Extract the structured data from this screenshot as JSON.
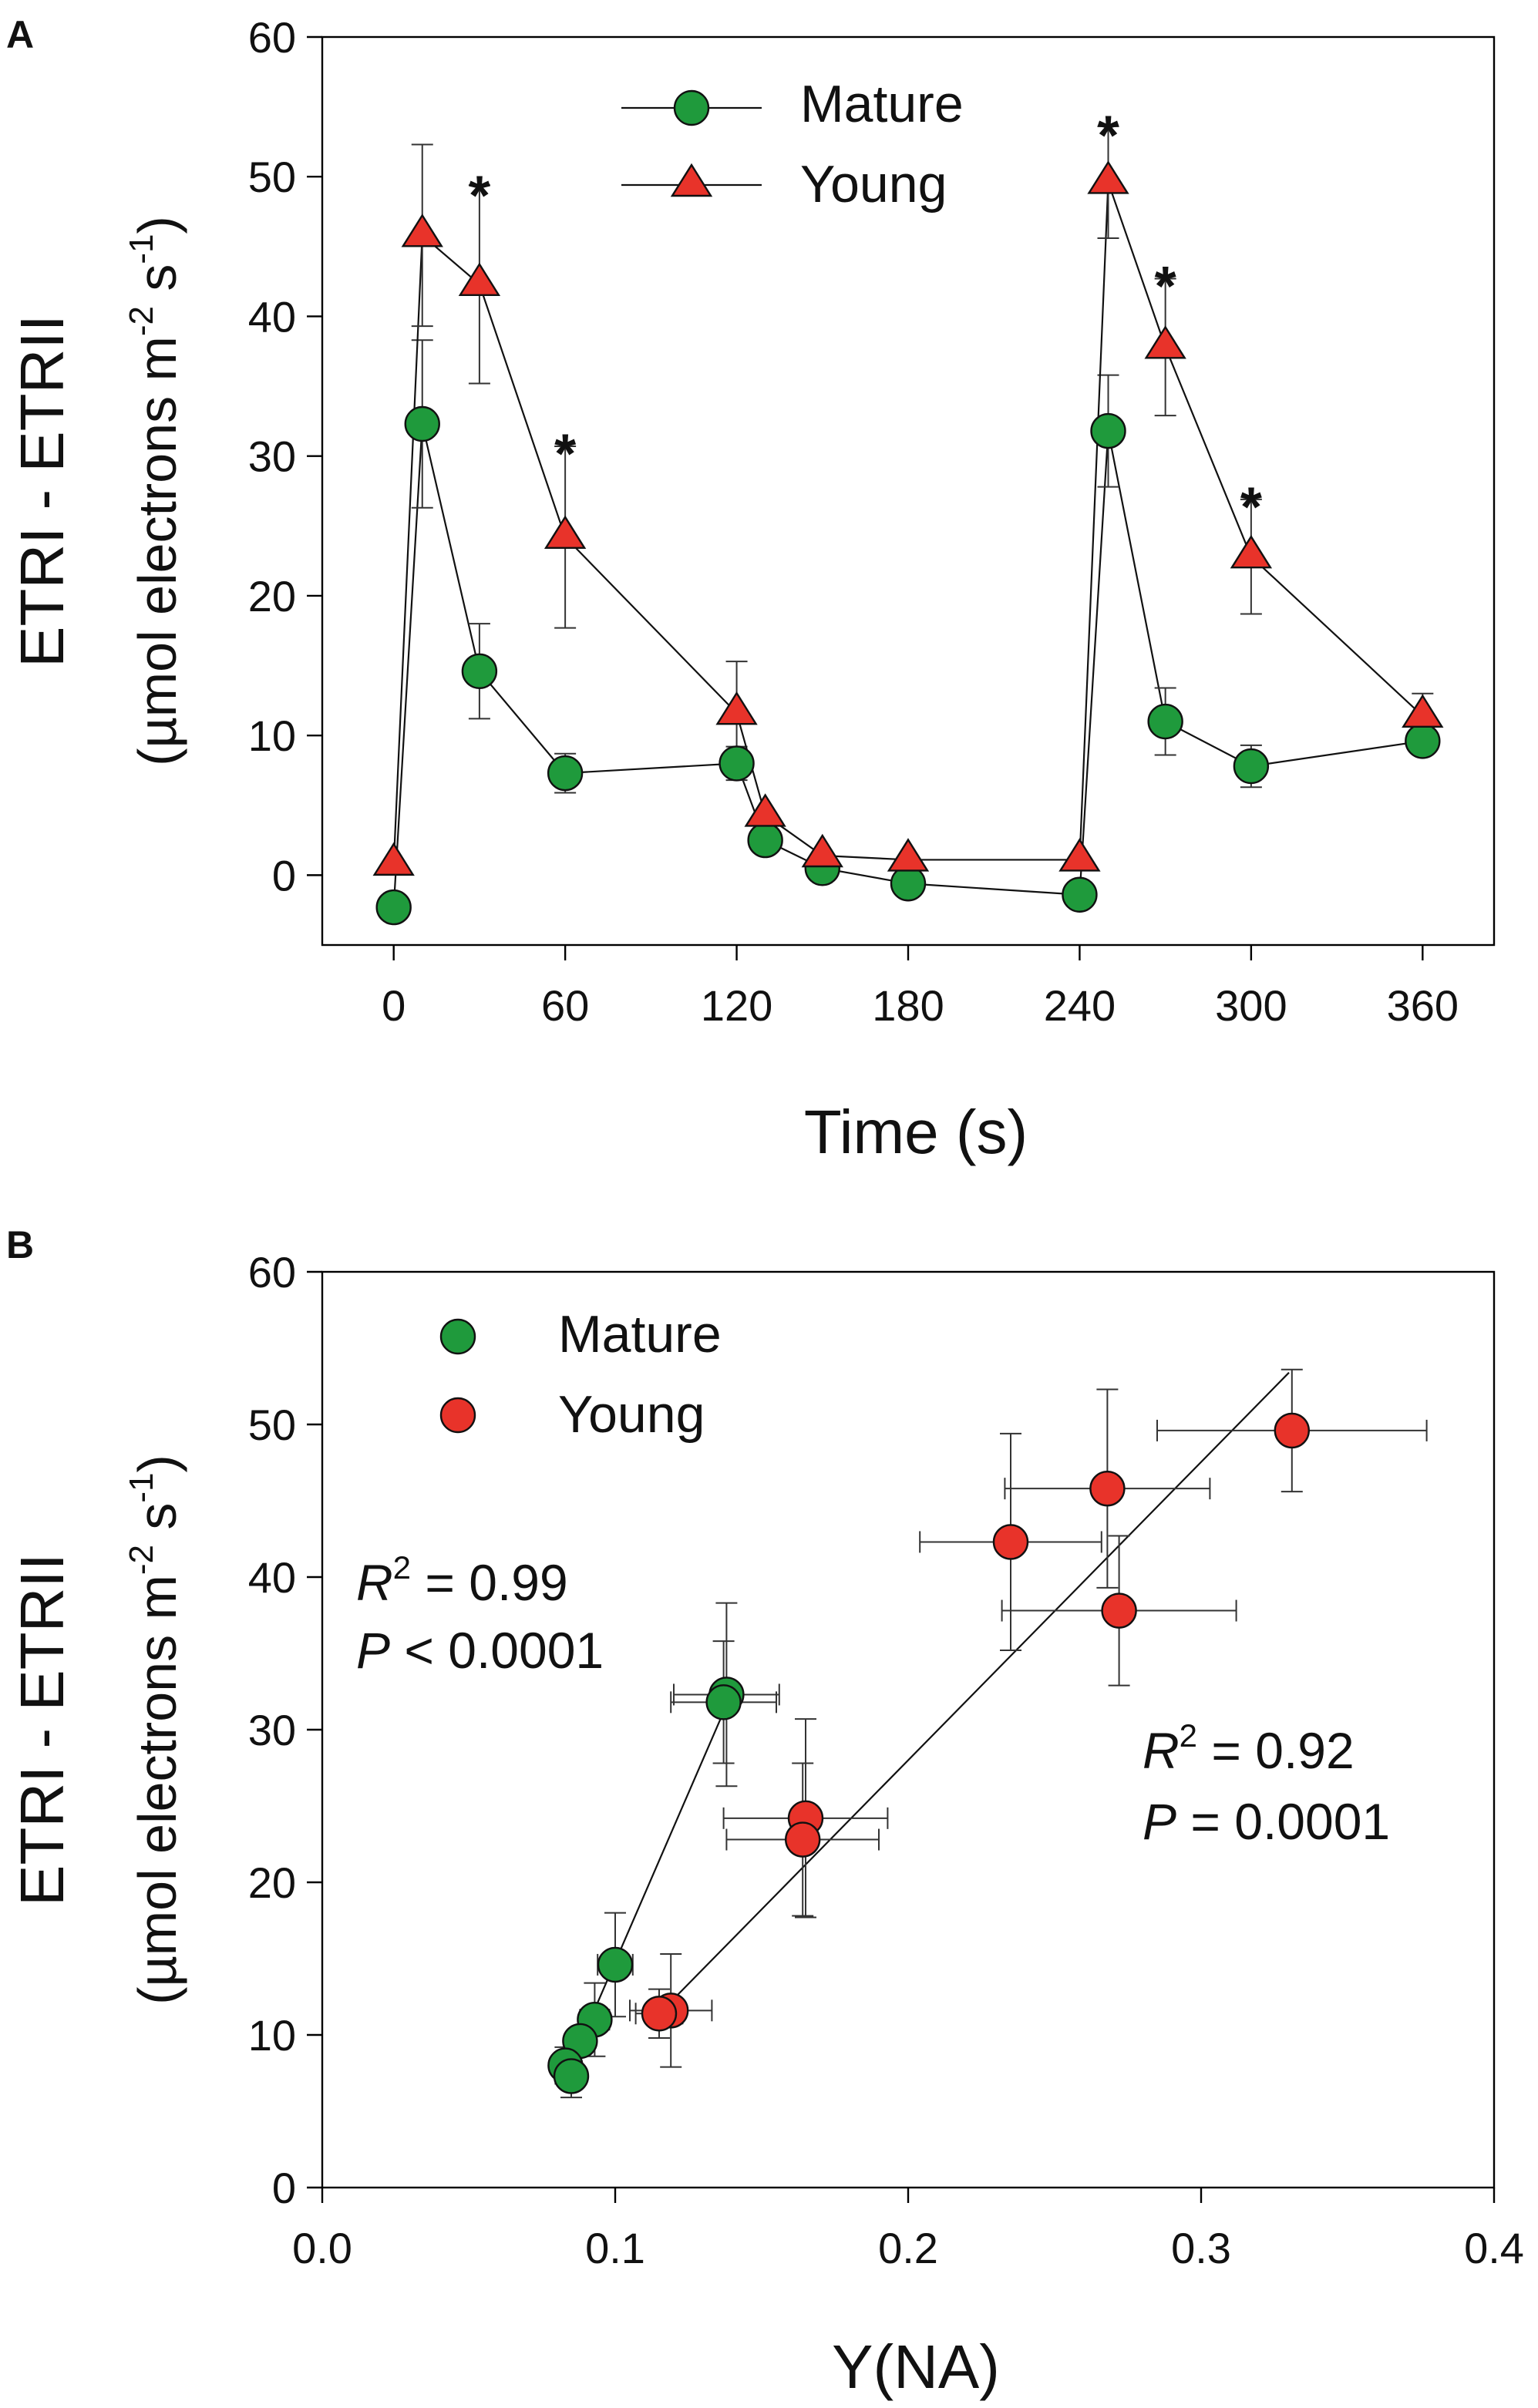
{
  "colors": {
    "mature": "#1f9a3c",
    "young_triangle": "#e8332a",
    "young_circle": "#e8332a",
    "axis": "#000000"
  },
  "chart_data": [
    {
      "panel_label": "A",
      "type": "line",
      "xlabel": "Time (s)",
      "ylabel": "ETRI - ETRII",
      "ylabel_units": "(µmol electrons m",
      "ylabel_exp1": "-2",
      "ylabel_units_mid": " s",
      "ylabel_exp2": "-1",
      "ylabel_close": ")",
      "xlim": [
        -25,
        385
      ],
      "ylim": [
        -5,
        60
      ],
      "xticks": [
        0,
        60,
        120,
        180,
        240,
        300,
        360
      ],
      "yticks": [
        0,
        10,
        20,
        30,
        40,
        50,
        60
      ],
      "legend": [
        "Mature",
        "Young"
      ],
      "series": [
        {
          "name": "Mature",
          "marker": "circle",
          "x": [
            0,
            10,
            30,
            60,
            120,
            130,
            150,
            180,
            240,
            250,
            270,
            300,
            360
          ],
          "y": [
            -2.3,
            32.3,
            14.6,
            7.3,
            8.0,
            2.5,
            0.5,
            -0.6,
            -1.4,
            31.8,
            11.0,
            7.8,
            9.6
          ],
          "err": [
            0,
            6.0,
            3.4,
            1.4,
            1.2,
            0,
            0,
            0,
            0,
            4.0,
            2.4,
            1.5,
            0.7
          ]
        },
        {
          "name": "Young",
          "marker": "triangle",
          "x": [
            0,
            10,
            30,
            60,
            120,
            130,
            150,
            180,
            240,
            250,
            270,
            300,
            360
          ],
          "y": [
            0.8,
            45.8,
            42.3,
            24.2,
            11.6,
            4.3,
            1.4,
            1.1,
            1.1,
            49.6,
            37.8,
            22.8,
            11.4
          ],
          "err": [
            0,
            6.5,
            7.1,
            6.5,
            3.7,
            0,
            0,
            0,
            0,
            4.0,
            4.9,
            4.1,
            1.6
          ]
        }
      ],
      "annotations": [
        {
          "text": "*",
          "x": 30,
          "y": 49.5
        },
        {
          "text": "*",
          "x": 60,
          "y": 31.0
        },
        {
          "text": "*",
          "x": 250,
          "y": 53.8
        },
        {
          "text": "*",
          "x": 270,
          "y": 43.0
        },
        {
          "text": "*",
          "x": 300,
          "y": 27.2
        }
      ]
    },
    {
      "panel_label": "B",
      "type": "scatter",
      "xlabel": "Y(NA)",
      "ylabel": "ETRI - ETRII",
      "ylabel_units": "(µmol electrons m",
      "ylabel_exp1": "-2",
      "ylabel_units_mid": " s",
      "ylabel_exp2": "-1",
      "ylabel_close": ")",
      "xlim": [
        0.0,
        0.4
      ],
      "ylim": [
        0,
        60
      ],
      "xticks": [
        "0.0",
        "0.1",
        "0.2",
        "0.3",
        "0.4"
      ],
      "yticks": [
        0,
        10,
        20,
        30,
        40,
        50,
        60
      ],
      "legend": [
        "Mature",
        "Young"
      ],
      "series": [
        {
          "name": "Mature",
          "marker": "circle",
          "x": [
            0.138,
            0.137,
            0.1,
            0.093,
            0.088,
            0.083,
            0.085
          ],
          "y": [
            32.3,
            31.8,
            14.6,
            11.0,
            9.6,
            8.0,
            7.3
          ],
          "xerr": [
            0.018,
            0.018,
            0.006,
            0.005,
            0.004,
            0.003,
            0.003
          ],
          "yerr": [
            6.0,
            4.0,
            3.4,
            2.4,
            0.7,
            1.2,
            1.4
          ],
          "fit": {
            "x": [
              0.082,
              0.14
            ],
            "y": [
              6.8,
              32.5
            ]
          }
        },
        {
          "name": "Young",
          "marker": "circle",
          "x": [
            0.331,
            0.268,
            0.235,
            0.272,
            0.165,
            0.164,
            0.119,
            0.115
          ],
          "y": [
            49.6,
            45.8,
            42.3,
            37.8,
            24.2,
            22.8,
            11.6,
            11.4
          ],
          "xerr": [
            0.046,
            0.035,
            0.031,
            0.04,
            0.028,
            0.026,
            0.014,
            0.008
          ],
          "yerr": [
            4.0,
            6.5,
            7.1,
            4.9,
            6.5,
            5.0,
            3.7,
            1.6
          ],
          "fit": {
            "x": [
              0.113,
              0.33
            ],
            "y": [
              11.0,
              53.4
            ]
          }
        }
      ],
      "stats": [
        {
          "r2": " = 0.99",
          "p": " < 0.0001",
          "r_label": "R",
          "p_label": "P",
          "sup": "2"
        },
        {
          "r2": " = 0.92",
          "p": " = 0.0001",
          "r_label": "R",
          "p_label": "P",
          "sup": "2"
        }
      ]
    }
  ]
}
